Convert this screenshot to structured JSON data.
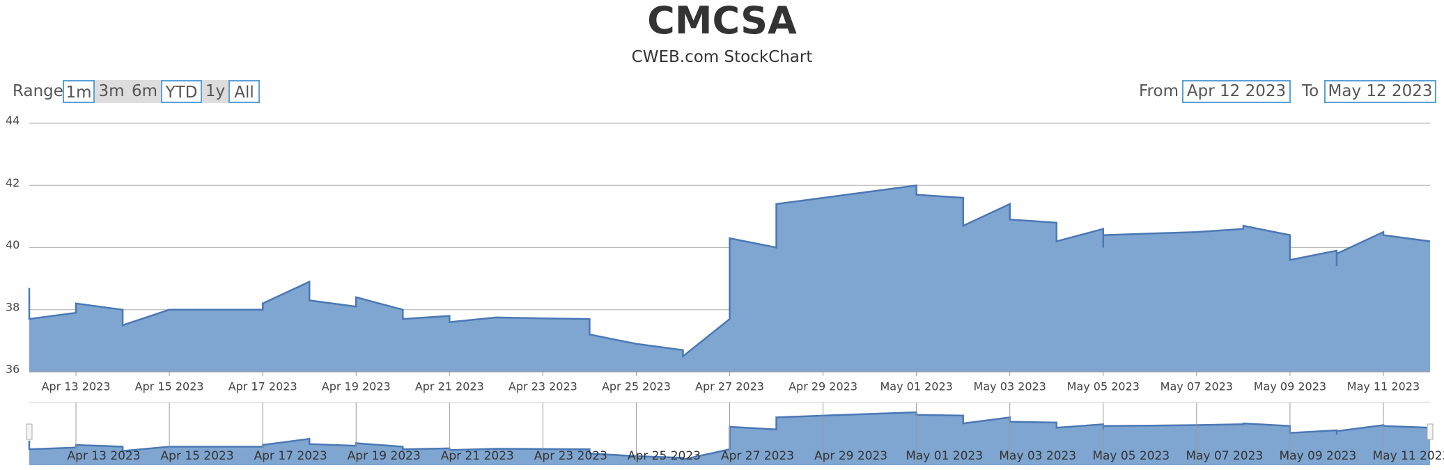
{
  "chart_data": {
    "type": "area",
    "title": "CMCSA",
    "subtitle": "CWEB.com StockChart",
    "range_label": "Range",
    "range_buttons": [
      "1m",
      "3m",
      "6m",
      "YTD",
      "1y",
      "All"
    ],
    "from_label": "From",
    "to_label": "To",
    "color": "#7fa5d1",
    "line_color": "#4a78b5",
    "grid": true,
    "xlim": [
      "Apr 12 2023",
      "May 12 2023"
    ],
    "xticks": [
      "Apr 13 2023",
      "Apr 15 2023",
      "Apr 17 2023",
      "Apr 19 2023",
      "Apr 21 2023",
      "Apr 23 2023",
      "Apr 25 2023",
      "Apr 27 2023",
      "Apr 29 2023",
      "May 01 2023",
      "May 03 2023",
      "May 05 2023",
      "May 07 2023",
      "May 09 2023",
      "May 11 2023"
    ],
    "ylim": [
      36,
      44
    ],
    "yticks": [
      36,
      38,
      40,
      42,
      44
    ],
    "x": [
      "Apr 12 2023",
      "Apr 12 2023",
      "Apr 13 2023",
      "Apr 13 2023",
      "Apr 14 2023",
      "Apr 14 2023",
      "Apr 15 2023",
      "Apr 16 2023",
      "Apr 17 2023",
      "Apr 17 2023",
      "Apr 18 2023",
      "Apr 18 2023",
      "Apr 19 2023",
      "Apr 19 2023",
      "Apr 20 2023",
      "Apr 20 2023",
      "Apr 21 2023",
      "Apr 21 2023",
      "Apr 22 2023",
      "Apr 23 2023",
      "Apr 24 2023",
      "Apr 24 2023",
      "Apr 25 2023",
      "Apr 26 2023",
      "Apr 26 2023",
      "Apr 27 2023",
      "Apr 27 2023",
      "Apr 28 2023",
      "Apr 28 2023",
      "Apr 29 2023",
      "Apr 30 2023",
      "May 01 2023",
      "May 01 2023",
      "May 02 2023",
      "May 02 2023",
      "May 03 2023",
      "May 03 2023",
      "May 04 2023",
      "May 04 2023",
      "May 05 2023",
      "May 05 2023",
      "May 05 2023",
      "May 06 2023",
      "May 07 2023",
      "May 08 2023",
      "May 08 2023",
      "May 09 2023",
      "May 09 2023",
      "May 10 2023",
      "May 10 2023",
      "May 10 2023",
      "May 11 2023",
      "May 11 2023",
      "May 12 2023"
    ],
    "values": [
      38.7,
      37.7,
      37.9,
      38.2,
      38.0,
      37.5,
      38.0,
      38.0,
      38.0,
      38.2,
      38.9,
      38.3,
      38.1,
      38.4,
      38.0,
      37.7,
      37.8,
      37.6,
      37.75,
      37.72,
      37.7,
      37.2,
      36.9,
      36.7,
      36.5,
      37.7,
      40.3,
      40.0,
      41.4,
      41.6,
      41.8,
      42.0,
      41.7,
      41.6,
      40.7,
      41.4,
      40.9,
      40.8,
      40.2,
      40.6,
      40.0,
      40.4,
      40.45,
      40.5,
      40.6,
      40.7,
      40.4,
      39.6,
      39.9,
      39.4,
      39.8,
      40.5,
      40.4,
      40.2
    ]
  }
}
